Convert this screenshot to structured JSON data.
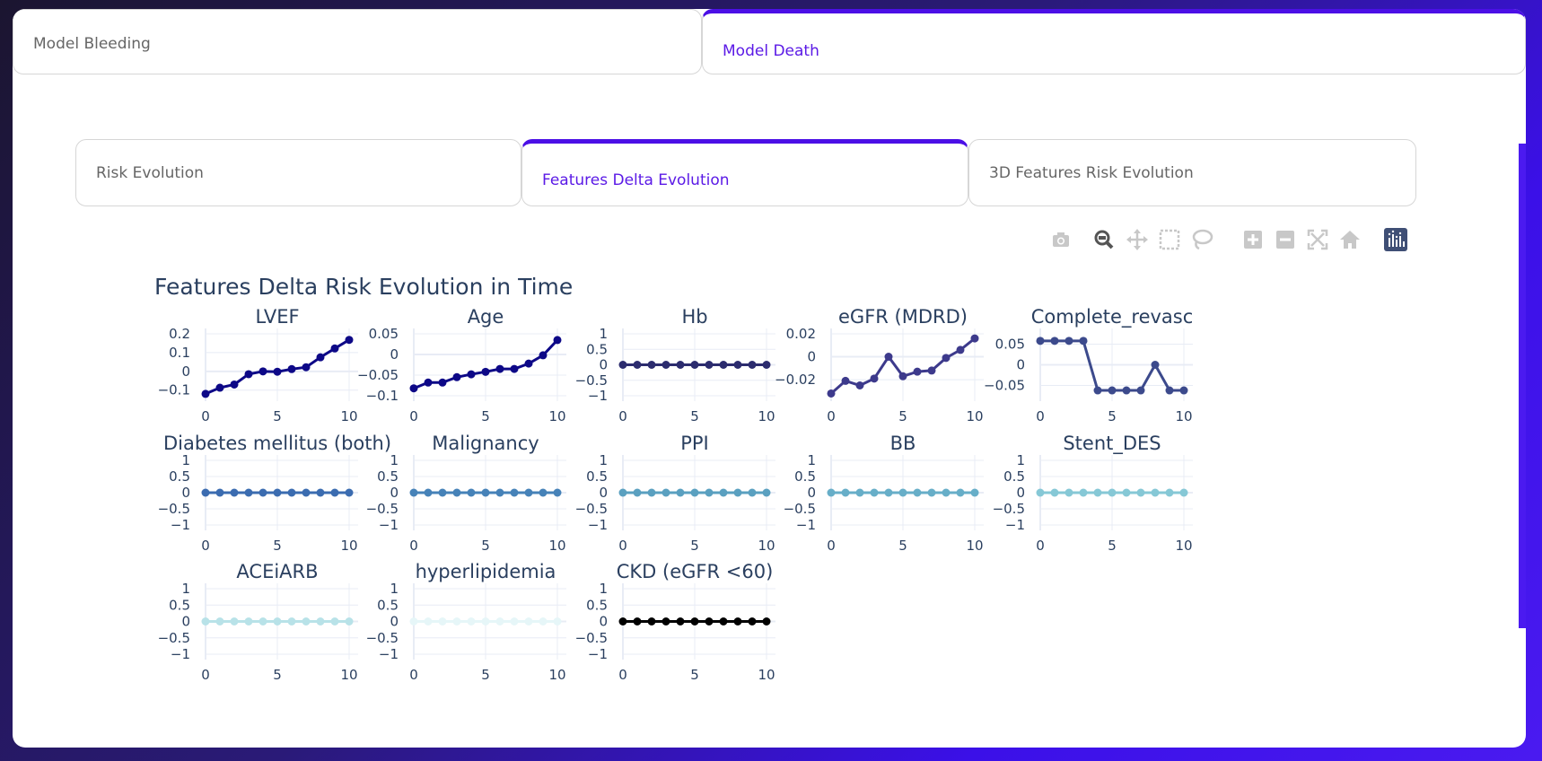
{
  "tabs": {
    "top": [
      {
        "label": "Model Bleeding",
        "active": false
      },
      {
        "label": "Model Death",
        "active": true
      }
    ],
    "sub": [
      {
        "label": "Risk Evolution",
        "active": false
      },
      {
        "label": "Features Delta Evolution",
        "active": true
      },
      {
        "label": "3D Features Risk Evolution",
        "active": false
      }
    ]
  },
  "modebar": {
    "icons": [
      "camera-icon",
      "zoom-icon",
      "pan-icon",
      "box-select-icon",
      "lasso-icon",
      "zoom-in-icon",
      "zoom-out-icon",
      "autoscale-icon",
      "reset-axes-icon",
      "plotly-logo-icon"
    ]
  },
  "chart_data": {
    "type": "line",
    "title": "Features Delta Risk Evolution in Time",
    "x": [
      0,
      1,
      2,
      3,
      4,
      5,
      6,
      7,
      8,
      9,
      10
    ],
    "xticks": [
      0,
      5,
      10
    ],
    "grid": true,
    "series": [
      {
        "name": "LVEF",
        "color": "#0d0887",
        "values": [
          -0.12,
          -0.087,
          -0.07,
          -0.015,
          0.0,
          -0.002,
          0.012,
          0.022,
          0.075,
          0.122,
          0.168
        ],
        "ylim": [
          -0.13,
          0.2
        ],
        "yticks": [
          -0.1,
          0,
          0.1,
          0.2
        ]
      },
      {
        "name": "Age",
        "color": "#0d0887",
        "values": [
          -0.082,
          -0.068,
          -0.068,
          -0.055,
          -0.048,
          -0.042,
          -0.035,
          -0.035,
          -0.022,
          -0.002,
          0.035
        ],
        "ylim": [
          -0.1,
          0.05
        ],
        "yticks": [
          -0.1,
          -0.05,
          0,
          0.05
        ]
      },
      {
        "name": "Hb",
        "color": "#2c2c6e",
        "values": [
          0,
          0,
          0,
          0,
          0,
          0,
          0,
          0,
          0,
          0,
          0
        ],
        "ylim": [
          -1,
          1
        ],
        "yticks": [
          -1,
          -0.5,
          0,
          0.5,
          1
        ]
      },
      {
        "name": "eGFR (MDRD)",
        "color": "#3d3a8c",
        "values": [
          -0.032,
          -0.021,
          -0.025,
          -0.019,
          0.0,
          -0.017,
          -0.013,
          -0.012,
          -0.001,
          0.006,
          0.016
        ],
        "ylim": [
          -0.034,
          0.02
        ],
        "yticks": [
          -0.02,
          0,
          0.02
        ]
      },
      {
        "name": "Complete_revasc",
        "color": "#3c4a8c",
        "values": [
          0.058,
          0.058,
          0.058,
          0.058,
          -0.062,
          -0.062,
          -0.062,
          -0.062,
          0.0,
          -0.062,
          -0.062
        ],
        "ylim": [
          -0.075,
          0.075
        ],
        "yticks": [
          -0.05,
          0,
          0.05
        ]
      },
      {
        "name": "Diabetes mellitus (both)",
        "color": "#3b6cb0",
        "values": [
          0,
          0,
          0,
          0,
          0,
          0,
          0,
          0,
          0,
          0,
          0
        ],
        "ylim": [
          -1,
          1
        ],
        "yticks": [
          -1,
          -0.5,
          0,
          0.5,
          1
        ]
      },
      {
        "name": "Malignancy",
        "color": "#4682b8",
        "values": [
          0,
          0,
          0,
          0,
          0,
          0,
          0,
          0,
          0,
          0,
          0
        ],
        "ylim": [
          -1,
          1
        ],
        "yticks": [
          -1,
          -0.5,
          0,
          0.5,
          1
        ]
      },
      {
        "name": "PPI",
        "color": "#5aa0c0",
        "values": [
          0,
          0,
          0,
          0,
          0,
          0,
          0,
          0,
          0,
          0,
          0
        ],
        "ylim": [
          -1,
          1
        ],
        "yticks": [
          -1,
          -0.5,
          0,
          0.5,
          1
        ]
      },
      {
        "name": "BB",
        "color": "#67aec8",
        "values": [
          0,
          0,
          0,
          0,
          0,
          0,
          0,
          0,
          0,
          0,
          0
        ],
        "ylim": [
          -1,
          1
        ],
        "yticks": [
          -1,
          -0.5,
          0,
          0.5,
          1
        ]
      },
      {
        "name": "Stent_DES",
        "color": "#86c8d6",
        "values": [
          0,
          0,
          0,
          0,
          0,
          0,
          0,
          0,
          0,
          0,
          0
        ],
        "ylim": [
          -1,
          1
        ],
        "yticks": [
          -1,
          -0.5,
          0,
          0.5,
          1
        ]
      },
      {
        "name": "ACEiARB",
        "color": "#b8e2e8",
        "values": [
          0,
          0,
          0,
          0,
          0,
          0,
          0,
          0,
          0,
          0,
          0
        ],
        "ylim": [
          -1,
          1
        ],
        "yticks": [
          -1,
          -0.5,
          0,
          0.5,
          1
        ]
      },
      {
        "name": "hyperlipidemia",
        "color": "#e6f6f8",
        "values": [
          0,
          0,
          0,
          0,
          0,
          0,
          0,
          0,
          0,
          0,
          0
        ],
        "ylim": [
          -1,
          1
        ],
        "yticks": [
          -1,
          -0.5,
          0,
          0.5,
          1
        ]
      },
      {
        "name": "CKD (eGFR <60)",
        "color": "#000000",
        "values": [
          0,
          0,
          0,
          0,
          0,
          0,
          0,
          0,
          0,
          0,
          0
        ],
        "ylim": [
          -1,
          1
        ],
        "yticks": [
          -1,
          -0.5,
          0,
          0.5,
          1
        ]
      }
    ]
  },
  "colors": {
    "accent": "#4b0fe6",
    "text": "#2a3f5f",
    "grid": "#e8ecf5"
  }
}
